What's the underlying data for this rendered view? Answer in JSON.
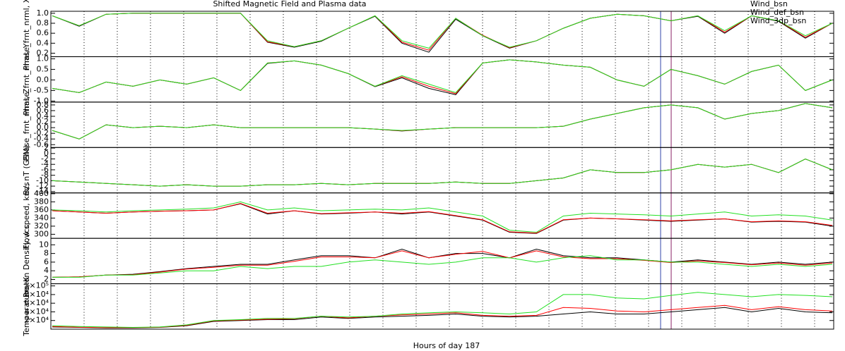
{
  "chart_data": [
    {
      "type": "line",
      "title": "Shifted Magnetic Field and Plasma data",
      "ylabel": "Phase_frnt_nrml, X",
      "ylim": [
        0.13,
        1.04
      ],
      "yticks": [
        0.2,
        0.4,
        0.6,
        0.8,
        {
          "value": 1,
          "label": "1.0"
        }
      ],
      "series": [
        {
          "name": "Wind_bsn",
          "color": "#000000",
          "values": [
            0.95,
            0.74,
            0.98,
            1.0,
            1.0,
            1.0,
            1.0,
            1.0,
            0.42,
            0.32,
            0.44,
            0.7,
            0.94,
            0.4,
            0.22,
            0.88,
            0.55,
            0.3,
            0.45,
            0.7,
            0.9,
            0.98,
            0.95,
            0.85,
            0.94,
            0.6,
            0.95,
            0.84,
            0.5,
            0.8
          ]
        },
        {
          "name": "Wind_def_bsn",
          "color": "#ff0000",
          "values": [
            0.95,
            0.75,
            0.98,
            1.0,
            1.0,
            1.0,
            1.0,
            1.0,
            0.43,
            0.33,
            0.45,
            0.7,
            0.95,
            0.42,
            0.26,
            0.9,
            0.56,
            0.31,
            0.45,
            0.7,
            0.9,
            0.98,
            0.95,
            0.85,
            0.95,
            0.62,
            0.95,
            0.85,
            0.52,
            0.8
          ]
        },
        {
          "name": "Wind_3dp_bsn",
          "color": "#22e022",
          "values": [
            0.95,
            0.75,
            0.98,
            1.0,
            1.0,
            1.0,
            1.0,
            1.0,
            0.45,
            0.33,
            0.45,
            0.7,
            0.95,
            0.45,
            0.3,
            0.9,
            0.55,
            0.32,
            0.45,
            0.7,
            0.9,
            0.98,
            0.95,
            0.85,
            0.95,
            0.65,
            0.95,
            0.85,
            0.55,
            0.8
          ]
        }
      ]
    },
    {
      "type": "line",
      "ylabel": "Phase_frnt_nrml, Y",
      "ylim": [
        -1.05,
        1.1
      ],
      "yticks": [
        {
          "value": -1,
          "label": "-1.0"
        },
        -0.5,
        {
          "value": 0,
          "label": "0.0"
        },
        0.5,
        {
          "value": 1,
          "label": "1.0"
        }
      ],
      "series": [
        {
          "color": "#000000",
          "values": [
            -0.4,
            -0.6,
            -0.1,
            -0.3,
            0.0,
            -0.2,
            0.1,
            -0.5,
            0.78,
            0.9,
            0.7,
            0.3,
            -0.32,
            0.1,
            -0.4,
            -0.7,
            0.8,
            0.95,
            0.85,
            0.7,
            0.6,
            0.0,
            -0.3,
            0.5,
            0.2,
            -0.2,
            0.4,
            0.7,
            -0.5,
            0.0
          ]
        },
        {
          "color": "#ff0000",
          "values": [
            -0.4,
            -0.6,
            -0.1,
            -0.3,
            0.0,
            -0.2,
            0.1,
            -0.5,
            0.8,
            0.9,
            0.7,
            0.3,
            -0.3,
            0.15,
            -0.3,
            -0.65,
            0.8,
            0.95,
            0.85,
            0.7,
            0.6,
            0.0,
            -0.3,
            0.5,
            0.2,
            -0.2,
            0.4,
            0.7,
            -0.5,
            0.0
          ]
        },
        {
          "color": "#22e022",
          "values": [
            -0.4,
            -0.6,
            -0.1,
            -0.3,
            0.0,
            -0.2,
            0.1,
            -0.5,
            0.8,
            0.9,
            0.7,
            0.3,
            -0.3,
            0.2,
            -0.2,
            -0.6,
            0.8,
            0.95,
            0.85,
            0.7,
            0.6,
            0.0,
            -0.3,
            0.5,
            0.2,
            -0.2,
            0.4,
            0.7,
            -0.5,
            0.0
          ]
        }
      ]
    },
    {
      "type": "line",
      "ylabel": "Phase_frnt_nrml, Z",
      "ylim": [
        -0.7,
        0.9
      ],
      "yticks": [
        -0.6,
        -0.4,
        -0.2,
        {
          "value": 0,
          "label": "0.0"
        },
        0.2,
        0.4,
        0.6,
        0.8
      ],
      "series": [
        {
          "color": "#000000",
          "values": [
            -0.1,
            -0.4,
            0.1,
            0.0,
            0.05,
            0.0,
            0.1,
            0.0,
            0.0,
            0.0,
            0.0,
            0.0,
            -0.05,
            -0.12,
            -0.05,
            0.0,
            0.0,
            0.0,
            0.0,
            0.05,
            0.3,
            0.5,
            0.7,
            0.8,
            0.7,
            0.3,
            0.5,
            0.6,
            0.85,
            0.7
          ]
        },
        {
          "color": "#ff0000",
          "values": [
            -0.1,
            -0.4,
            0.1,
            0.0,
            0.05,
            0.0,
            0.1,
            0.0,
            0.0,
            0.0,
            0.0,
            0.0,
            -0.05,
            -0.11,
            -0.05,
            0.0,
            0.0,
            0.0,
            0.0,
            0.05,
            0.3,
            0.5,
            0.7,
            0.8,
            0.7,
            0.3,
            0.5,
            0.6,
            0.85,
            0.7
          ]
        },
        {
          "color": "#22e022",
          "values": [
            -0.1,
            -0.4,
            0.1,
            0.0,
            0.05,
            0.0,
            0.1,
            0.0,
            0.0,
            0.0,
            0.0,
            0.0,
            -0.05,
            -0.1,
            -0.05,
            0.0,
            0.0,
            0.0,
            0.0,
            0.05,
            0.3,
            0.5,
            0.7,
            0.8,
            0.7,
            0.3,
            0.5,
            0.6,
            0.85,
            0.7
          ]
        }
      ]
    },
    {
      "type": "line",
      "ylabel": "Bz, nT (GSM)",
      "ylim": [
        -14.5,
        2.2
      ],
      "yticks": [
        -14,
        -12,
        -10,
        -8,
        -6,
        -4,
        -2,
        0,
        2
      ],
      "series": [
        {
          "color": "#000000",
          "values": [
            -10,
            -10.5,
            -11,
            -11.5,
            -12,
            -11.5,
            -12,
            -12,
            -11.5,
            -11.5,
            -11,
            -11.5,
            -11,
            -11,
            -11,
            -10.5,
            -11,
            -11,
            -10,
            -9,
            -6,
            -7,
            -7,
            -6,
            -4,
            -5,
            -4,
            -7,
            -2,
            -6
          ]
        },
        {
          "color": "#ff0000",
          "values": [
            -10,
            -10.5,
            -11,
            -11.5,
            -12,
            -11.5,
            -12,
            -12,
            -11.5,
            -11.5,
            -11,
            -11.5,
            -11,
            -11,
            -11,
            -10.5,
            -11,
            -11,
            -10,
            -9,
            -6,
            -7,
            -7,
            -6,
            -4,
            -5,
            -4,
            -7,
            -2,
            -6
          ]
        },
        {
          "color": "#22e022",
          "values": [
            -10,
            -10.5,
            -11,
            -11.5,
            -12,
            -11.5,
            -12,
            -12,
            -11.5,
            -11.5,
            -11,
            -11.5,
            -11,
            -11,
            -11,
            -10.5,
            -11,
            -11,
            -10,
            -9,
            -6,
            -7,
            -7,
            -6,
            -4,
            -5,
            -4,
            -7,
            -2,
            -6
          ]
        }
      ]
    },
    {
      "type": "line",
      "ylabel": "Flow speed, km/s",
      "ylim": [
        290,
        402
      ],
      "yticks": [
        300,
        320,
        340,
        360,
        380,
        400
      ],
      "series": [
        {
          "color": "#000000",
          "values": [
            358,
            355,
            352,
            355,
            357,
            358,
            360,
            375,
            350,
            358,
            350,
            352,
            355,
            350,
            355,
            345,
            335,
            305,
            302,
            335,
            340,
            338,
            335,
            332,
            335,
            338,
            330,
            332,
            330,
            320
          ]
        },
        {
          "color": "#ff0000",
          "values": [
            358,
            355,
            352,
            355,
            357,
            358,
            360,
            376,
            352,
            358,
            351,
            353,
            355,
            352,
            356,
            346,
            336,
            306,
            303,
            336,
            340,
            338,
            336,
            333,
            336,
            338,
            331,
            333,
            331,
            322
          ]
        },
        {
          "color": "#22e022",
          "values": [
            360,
            358,
            355,
            358,
            360,
            362,
            365,
            380,
            360,
            365,
            358,
            360,
            362,
            360,
            365,
            355,
            345,
            310,
            305,
            345,
            352,
            350,
            348,
            345,
            350,
            355,
            345,
            348,
            345,
            335
          ]
        }
      ]
    },
    {
      "type": "line",
      "ylabel": "Proton Density, /cc",
      "ylim": [
        1,
        11.5
      ],
      "yticks": [
        2,
        4,
        6,
        8,
        10
      ],
      "series": [
        {
          "color": "#000000",
          "values": [
            2.5,
            2.6,
            3,
            3.2,
            3.8,
            4.5,
            5,
            5.5,
            5.5,
            6.5,
            7.5,
            7.5,
            7,
            9,
            7,
            8,
            8,
            7,
            9,
            7.5,
            7,
            7,
            6.5,
            6,
            6.5,
            6,
            5.5,
            6,
            5.5,
            6
          ]
        },
        {
          "color": "#ff0000",
          "values": [
            2.5,
            2.6,
            3,
            3.1,
            3.7,
            4.4,
            4.8,
            5.3,
            5.3,
            6.2,
            7.2,
            7.2,
            7,
            8.6,
            7,
            7.8,
            8.5,
            7,
            8.6,
            7.2,
            6.8,
            6.8,
            6.4,
            5.9,
            6.3,
            5.9,
            5.4,
            5.8,
            5.3,
            5.8
          ]
        },
        {
          "color": "#22e022",
          "values": [
            2.5,
            2.5,
            3,
            3,
            3.5,
            4,
            4,
            5,
            4.5,
            5,
            5,
            6,
            6.5,
            6,
            5.5,
            6,
            7,
            7,
            6,
            7,
            7.5,
            6.5,
            6.5,
            6,
            6,
            5.5,
            5,
            5.5,
            5,
            5.5
          ]
        }
      ]
    },
    {
      "type": "line",
      "ylabel": "Temperature, K",
      "xlabel": "Hours of day 187",
      "ylim": [
        0,
        105000
      ],
      "yticks": [
        {
          "value": 20000,
          "label": "2×10⁴"
        },
        {
          "value": 40000,
          "label": "4×10⁴"
        },
        {
          "value": 60000,
          "label": "6×10⁴"
        },
        {
          "value": 80000,
          "label": "8×10⁴"
        },
        {
          "value": 100000,
          "label": "1×10⁵"
        }
      ],
      "series": [
        {
          "color": "#000000",
          "values": [
            5000,
            4000,
            3000,
            3000,
            4000,
            8000,
            18000,
            20000,
            22000,
            22000,
            28000,
            25000,
            28000,
            30000,
            32000,
            35000,
            30000,
            28000,
            30000,
            35000,
            40000,
            35000,
            35000,
            40000,
            45000,
            50000,
            40000,
            48000,
            40000,
            38000
          ]
        },
        {
          "color": "#ff0000",
          "values": [
            6000,
            4500,
            3500,
            3500,
            4500,
            9000,
            19000,
            21000,
            23000,
            24000,
            30000,
            26000,
            30000,
            33000,
            35000,
            38000,
            32000,
            30000,
            32000,
            50000,
            48000,
            42000,
            40000,
            45000,
            50000,
            55000,
            45000,
            52000,
            45000,
            42000
          ]
        },
        {
          "color": "#22e022",
          "values": [
            8000,
            6000,
            5000,
            4000,
            5000,
            10000,
            20000,
            22000,
            25000,
            25000,
            30000,
            28000,
            30000,
            35000,
            38000,
            40000,
            38000,
            35000,
            40000,
            80000,
            80000,
            72000,
            70000,
            78000,
            85000,
            80000,
            75000,
            80000,
            78000,
            75000
          ]
        }
      ]
    }
  ]
}
